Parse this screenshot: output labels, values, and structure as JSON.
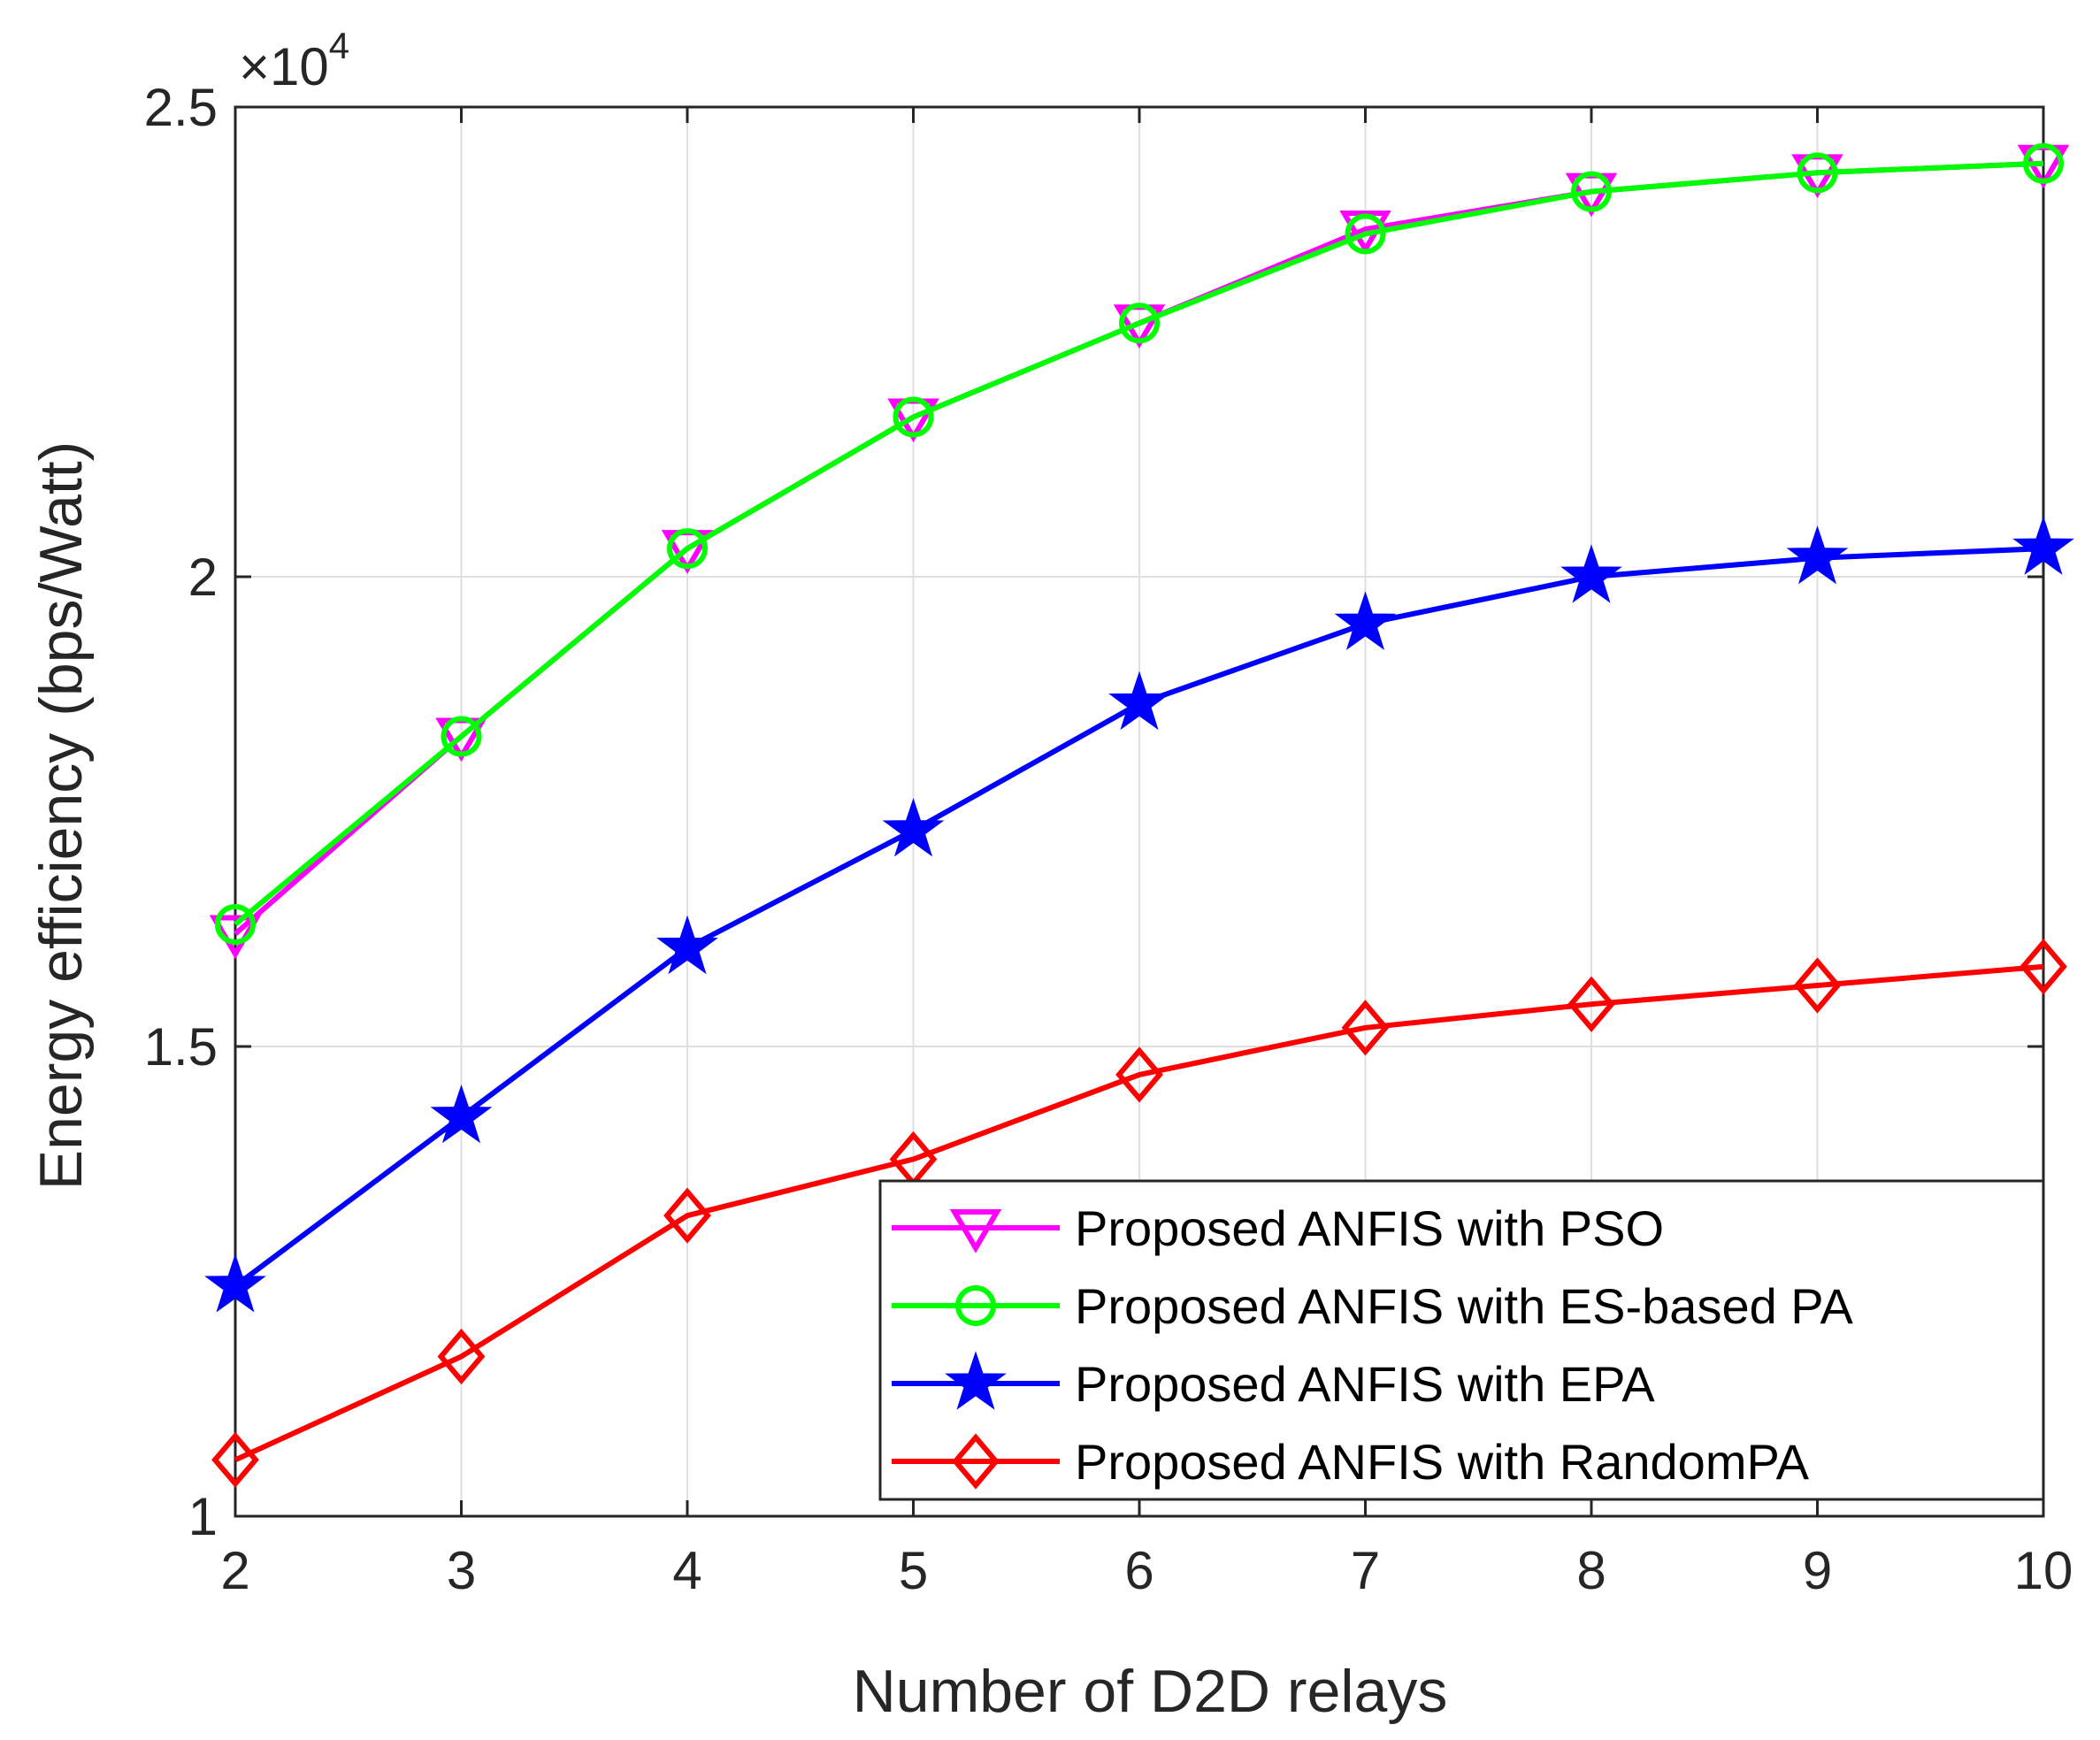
{
  "chart_data": {
    "type": "line",
    "title": "",
    "xlabel": "Number of D2D relays",
    "ylabel": "Energy efficiency (bps/Watt)",
    "x": [
      2,
      3,
      4,
      5,
      6,
      7,
      8,
      9,
      10
    ],
    "xlim": [
      2,
      10
    ],
    "ylim": [
      10000,
      25000
    ],
    "x_ticks": [
      "2",
      "3",
      "4",
      "5",
      "6",
      "7",
      "8",
      "9",
      "10"
    ],
    "y_ticks": [
      10000,
      15000,
      20000,
      25000
    ],
    "y_tick_labels": [
      "1",
      "1.5",
      "2",
      "2.5"
    ],
    "y_exponent": {
      "base": "×10",
      "power": "4"
    },
    "grid": true,
    "legend_position": "bottom-right",
    "series": [
      {
        "name": "Proposed ANFIS with PSO",
        "color": "#ff00ff",
        "marker": "triangle-down",
        "values": [
          16200,
          18300,
          20300,
          21700,
          22700,
          23700,
          24100,
          24300,
          24400
        ]
      },
      {
        "name": "Proposed ANFIS with ES-based PA",
        "color": "#00ff00",
        "marker": "circle",
        "values": [
          16300,
          18300,
          20300,
          21700,
          22700,
          23650,
          24100,
          24300,
          24400
        ]
      },
      {
        "name": "Proposed ANFIS with EPA",
        "color": "#0000ff",
        "marker": "star",
        "values": [
          12450,
          14250,
          16050,
          17300,
          18650,
          19500,
          20000,
          20200,
          20300
        ]
      },
      {
        "name": "Proposed ANFIS with RandomPA",
        "color": "#ff0000",
        "marker": "diamond",
        "values": [
          10600,
          11700,
          13200,
          13800,
          14700,
          15200,
          15450,
          15650,
          15850
        ]
      }
    ]
  }
}
